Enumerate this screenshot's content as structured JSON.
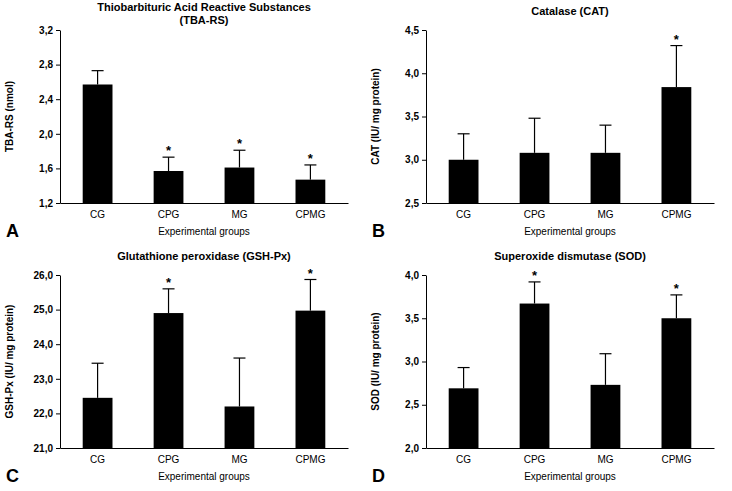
{
  "chart_data": [
    {
      "type": "bar",
      "panel": "A",
      "title": "Thiobarbituric Acid Reactive Substances (TBA-RS)",
      "x_label": "Experimental groups",
      "y_label": "TBA-RS (nmol)",
      "categories": [
        "CG",
        "CPG",
        "MG",
        "CPMG"
      ],
      "values": [
        2.57,
        1.57,
        1.61,
        1.47
      ],
      "errors": [
        0.16,
        0.16,
        0.2,
        0.17
      ],
      "color": "#000000",
      "grid": false,
      "ylim": [
        1.2,
        3.2
      ],
      "yticks": [
        {
          "value": 1.2,
          "label": "1,2"
        },
        {
          "value": 1.6,
          "label": "1,6"
        },
        {
          "value": 2.0,
          "label": "2,0"
        },
        {
          "value": 2.4,
          "label": "2,4"
        },
        {
          "value": 2.8,
          "label": "2,8"
        },
        {
          "value": 3.2,
          "label": "3,2"
        }
      ],
      "annotations": [
        {
          "x": "CPG",
          "text": "*"
        },
        {
          "x": "MG",
          "text": "*"
        },
        {
          "x": "CPMG",
          "text": "*"
        }
      ]
    },
    {
      "type": "bar",
      "panel": "B",
      "title": "Catalase (CAT)",
      "x_label": "Experimental groups",
      "y_label": "CAT (IU/ mg protein)",
      "categories": [
        "CG",
        "CPG",
        "MG",
        "CPMG"
      ],
      "values": [
        3.0,
        3.08,
        3.08,
        3.84
      ],
      "errors": [
        0.3,
        0.4,
        0.32,
        0.48
      ],
      "color": "#000000",
      "grid": false,
      "ylim": [
        2.5,
        4.5
      ],
      "yticks": [
        {
          "value": 2.5,
          "label": "2,5"
        },
        {
          "value": 3.0,
          "label": "3,0"
        },
        {
          "value": 3.5,
          "label": "3,5"
        },
        {
          "value": 4.0,
          "label": "4,0"
        },
        {
          "value": 4.5,
          "label": "4,5"
        }
      ],
      "annotations": [
        {
          "x": "CPMG",
          "text": "*"
        }
      ]
    },
    {
      "type": "bar",
      "panel": "C",
      "title": "Glutathione peroxidase (GSH-Px)",
      "x_label": "Experimental groups",
      "y_label": "GSH-Px (IU/ mg protein)",
      "categories": [
        "CG",
        "CPG",
        "MG",
        "CPMG"
      ],
      "values": [
        22.45,
        24.9,
        22.2,
        24.97
      ],
      "errors": [
        1.0,
        0.7,
        1.4,
        0.9
      ],
      "color": "#000000",
      "grid": false,
      "ylim": [
        21,
        26
      ],
      "yticks": [
        {
          "value": 21,
          "label": "21,0"
        },
        {
          "value": 22,
          "label": "22,0"
        },
        {
          "value": 23,
          "label": "23,0"
        },
        {
          "value": 24,
          "label": "24,0"
        },
        {
          "value": 25,
          "label": "25,0"
        },
        {
          "value": 26,
          "label": "26,0"
        }
      ],
      "annotations": [
        {
          "x": "CPG",
          "text": "*"
        },
        {
          "x": "CPMG",
          "text": "*"
        }
      ]
    },
    {
      "type": "bar",
      "panel": "D",
      "title": "Superoxide dismutase (SOD)",
      "x_label": "Experimental groups",
      "y_label": "SOD (IU/ mg protein)",
      "categories": [
        "CG",
        "CPG",
        "MG",
        "CPMG"
      ],
      "values": [
        2.69,
        3.67,
        2.73,
        3.5
      ],
      "errors": [
        0.24,
        0.25,
        0.36,
        0.27
      ],
      "color": "#000000",
      "grid": false,
      "ylim": [
        2.0,
        4.0
      ],
      "yticks": [
        {
          "value": 2.0,
          "label": "2,0"
        },
        {
          "value": 2.5,
          "label": "2,5"
        },
        {
          "value": 3.0,
          "label": "3,0"
        },
        {
          "value": 3.5,
          "label": "3,5"
        },
        {
          "value": 4.0,
          "label": "4,0"
        }
      ],
      "annotations": [
        {
          "x": "CPG",
          "text": "*"
        },
        {
          "x": "CPMG",
          "text": "*"
        }
      ]
    }
  ]
}
